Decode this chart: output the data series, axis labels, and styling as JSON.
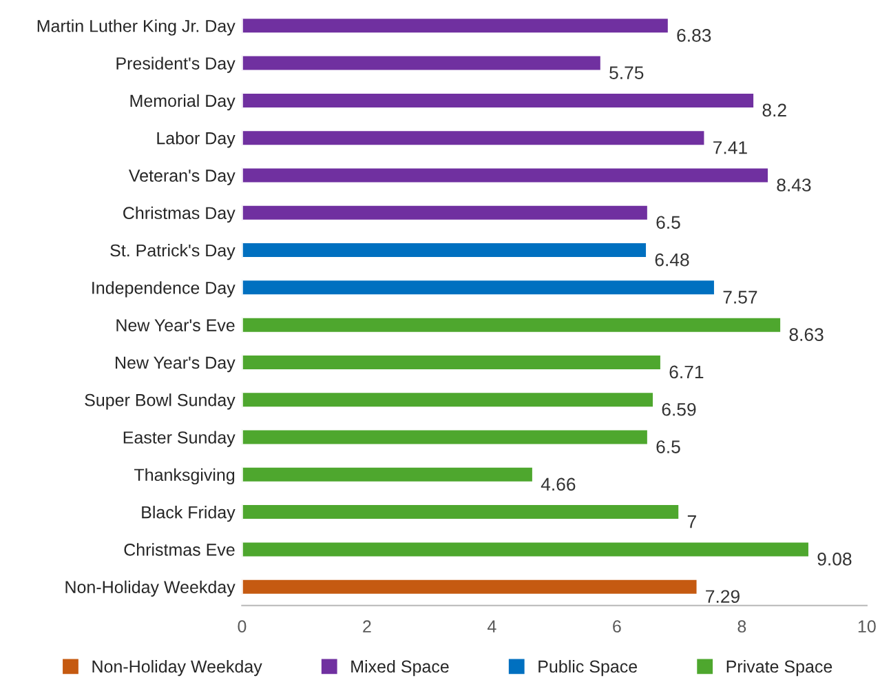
{
  "chart_data": {
    "type": "bar",
    "orientation": "horizontal",
    "categories": [
      "Martin Luther King Jr. Day",
      "President's Day",
      "Memorial Day",
      "Labor Day",
      "Veteran's Day",
      "Christmas Day",
      "St. Patrick's Day",
      "Independence Day",
      "New Year's Eve",
      "New Year's Day",
      "Super Bowl Sunday",
      "Easter Sunday",
      "Thanksgiving",
      "Black Friday",
      "Christmas Eve",
      "Non-Holiday Weekday"
    ],
    "series": [
      {
        "name": "Non-Holiday Weekday",
        "color": "#c55a11",
        "values": [
          null,
          null,
          null,
          null,
          null,
          null,
          null,
          null,
          null,
          null,
          null,
          null,
          null,
          null,
          null,
          7.29
        ]
      },
      {
        "name": "Mixed Space",
        "color": "#7030a0",
        "values": [
          6.83,
          5.75,
          8.2,
          7.41,
          8.43,
          6.5,
          null,
          null,
          null,
          null,
          null,
          null,
          null,
          null,
          null,
          null
        ]
      },
      {
        "name": "Public Space",
        "color": "#0070c0",
        "values": [
          null,
          null,
          null,
          null,
          null,
          null,
          6.48,
          7.57,
          null,
          null,
          null,
          null,
          null,
          null,
          null,
          null
        ]
      },
      {
        "name": "Private Space",
        "color": "#4ea72e",
        "values": [
          null,
          null,
          null,
          null,
          null,
          null,
          null,
          null,
          8.63,
          6.71,
          6.59,
          6.5,
          4.66,
          7,
          9.08,
          null
        ]
      }
    ],
    "xlim": [
      0,
      10
    ],
    "xticks": [
      0,
      2,
      4,
      6,
      8,
      10
    ],
    "data_labels": true,
    "legend": "bottom",
    "grid": false
  }
}
